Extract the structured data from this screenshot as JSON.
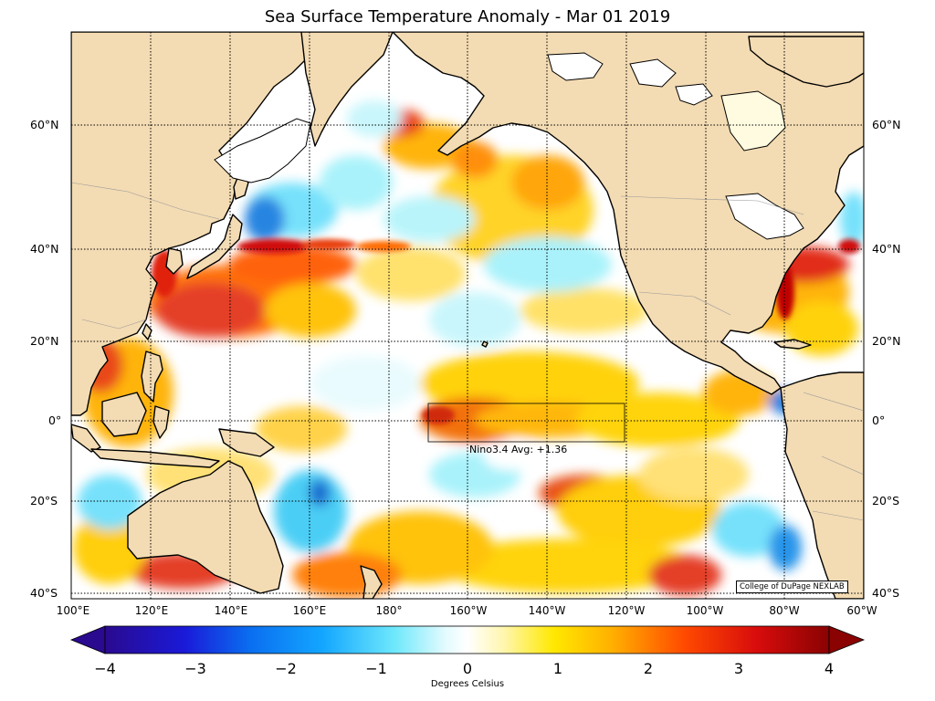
{
  "title": "Sea Surface Temperature Anomaly - Mar 01 2019",
  "annotation": "Nino3.4 Avg: +1.36",
  "credit": "College of DuPage NEXLAB",
  "colorbar_label": "Degrees Celsius",
  "colorbar_ticks": [
    "−4",
    "−3",
    "−2",
    "−1",
    "0",
    "1",
    "2",
    "3",
    "4"
  ],
  "lat_labels": [
    "60°N",
    "40°N",
    "20°N",
    "0°",
    "20°S",
    "40°S"
  ],
  "lon_labels": [
    "100°E",
    "120°E",
    "140°E",
    "160°E",
    "180°",
    "160°W",
    "140°W",
    "120°W",
    "100°W",
    "80°W",
    "60°W"
  ],
  "colors": {
    "land": "#f3dbb3",
    "ocean_neutral": "#ffffff",
    "warm_strong": "#e3341c",
    "warm_mid": "#ffae00",
    "warm_light": "#fff06a",
    "cool_light": "#a6f2fb",
    "cool_mid": "#43ccf5",
    "cool_strong": "#0b67ce"
  },
  "chart_data": {
    "type": "heatmap",
    "title": "Sea Surface Temperature Anomaly - Mar 01 2019",
    "colorbar": {
      "label": "Degrees Celsius",
      "min": -4,
      "max": 4,
      "ticks": [
        -4,
        -3,
        -2,
        -1,
        0,
        1,
        2,
        3,
        4
      ]
    },
    "lon_range": [
      "100°E",
      "60°W"
    ],
    "lat_range": [
      "40°S",
      "75°N"
    ],
    "nino34_box": {
      "lon": [
        "170°W",
        "120°W"
      ],
      "lat": [
        "5°S",
        "5°N"
      ],
      "avg_anomaly": 1.36
    },
    "grid": true
  }
}
